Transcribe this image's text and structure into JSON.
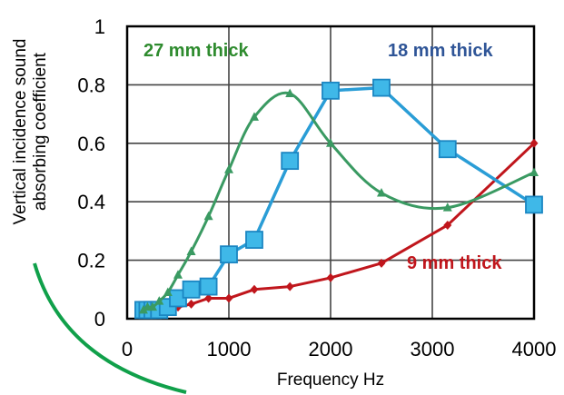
{
  "chart_data": {
    "type": "line",
    "xlabel": "Frequency Hz",
    "ylabel": [
      "Vertical incidence sound",
      "absorbing coefficient"
    ],
    "xlim": [
      0,
      4000
    ],
    "ylim": [
      0,
      1
    ],
    "x_ticks": [
      0,
      1000,
      2000,
      3000,
      4000
    ],
    "y_ticks": [
      0,
      0.2,
      0.4,
      0.6,
      0.8,
      1
    ],
    "x_tick_labels": [
      "0",
      "1000",
      "2000",
      "3000",
      "4000"
    ],
    "y_tick_labels": [
      "0",
      "0.2",
      "0.4",
      "0.6",
      "0.8",
      "1"
    ],
    "grid": "vertical and horizontal",
    "series": [
      {
        "name": "9 mm thick",
        "color": "#c0161c",
        "marker": "diamond",
        "smooth": false,
        "points": [
          [
            160,
            0.02
          ],
          [
            200,
            0.02
          ],
          [
            250,
            0.02
          ],
          [
            315,
            0.03
          ],
          [
            400,
            0.03
          ],
          [
            500,
            0.04
          ],
          [
            630,
            0.05
          ],
          [
            800,
            0.07
          ],
          [
            1000,
            0.07
          ],
          [
            1250,
            0.1
          ],
          [
            1600,
            0.11
          ],
          [
            2000,
            0.14
          ],
          [
            2500,
            0.19
          ],
          [
            3150,
            0.32
          ],
          [
            4000,
            0.6
          ]
        ]
      },
      {
        "name": "18 mm thick",
        "color": "#2a9dd6",
        "marker": "square",
        "smooth": false,
        "points": [
          [
            160,
            0.03
          ],
          [
            200,
            0.03
          ],
          [
            250,
            0.03
          ],
          [
            315,
            0.03
          ],
          [
            400,
            0.04
          ],
          [
            500,
            0.07
          ],
          [
            630,
            0.1
          ],
          [
            800,
            0.11
          ],
          [
            1000,
            0.22
          ],
          [
            1250,
            0.27
          ],
          [
            1600,
            0.54
          ],
          [
            2000,
            0.78
          ],
          [
            2500,
            0.79
          ],
          [
            3150,
            0.58
          ],
          [
            4000,
            0.39
          ]
        ]
      },
      {
        "name": "27 mm thick",
        "color": "#3a9a62",
        "marker": "triangle",
        "smooth": true,
        "points": [
          [
            160,
            0.03
          ],
          [
            200,
            0.04
          ],
          [
            250,
            0.04
          ],
          [
            315,
            0.06
          ],
          [
            400,
            0.09
          ],
          [
            500,
            0.15
          ],
          [
            630,
            0.23
          ],
          [
            800,
            0.35
          ],
          [
            1000,
            0.51
          ],
          [
            1250,
            0.69
          ],
          [
            1600,
            0.77
          ],
          [
            2000,
            0.6
          ],
          [
            2500,
            0.43
          ],
          [
            3150,
            0.38
          ],
          [
            4000,
            0.5
          ]
        ]
      }
    ],
    "series_label_colors": {
      "27 mm thick": "#2e8b2e",
      "18 mm thick": "#2f5597",
      "9 mm thick": "#c0161c"
    },
    "decoration_color": "#10a04a"
  }
}
